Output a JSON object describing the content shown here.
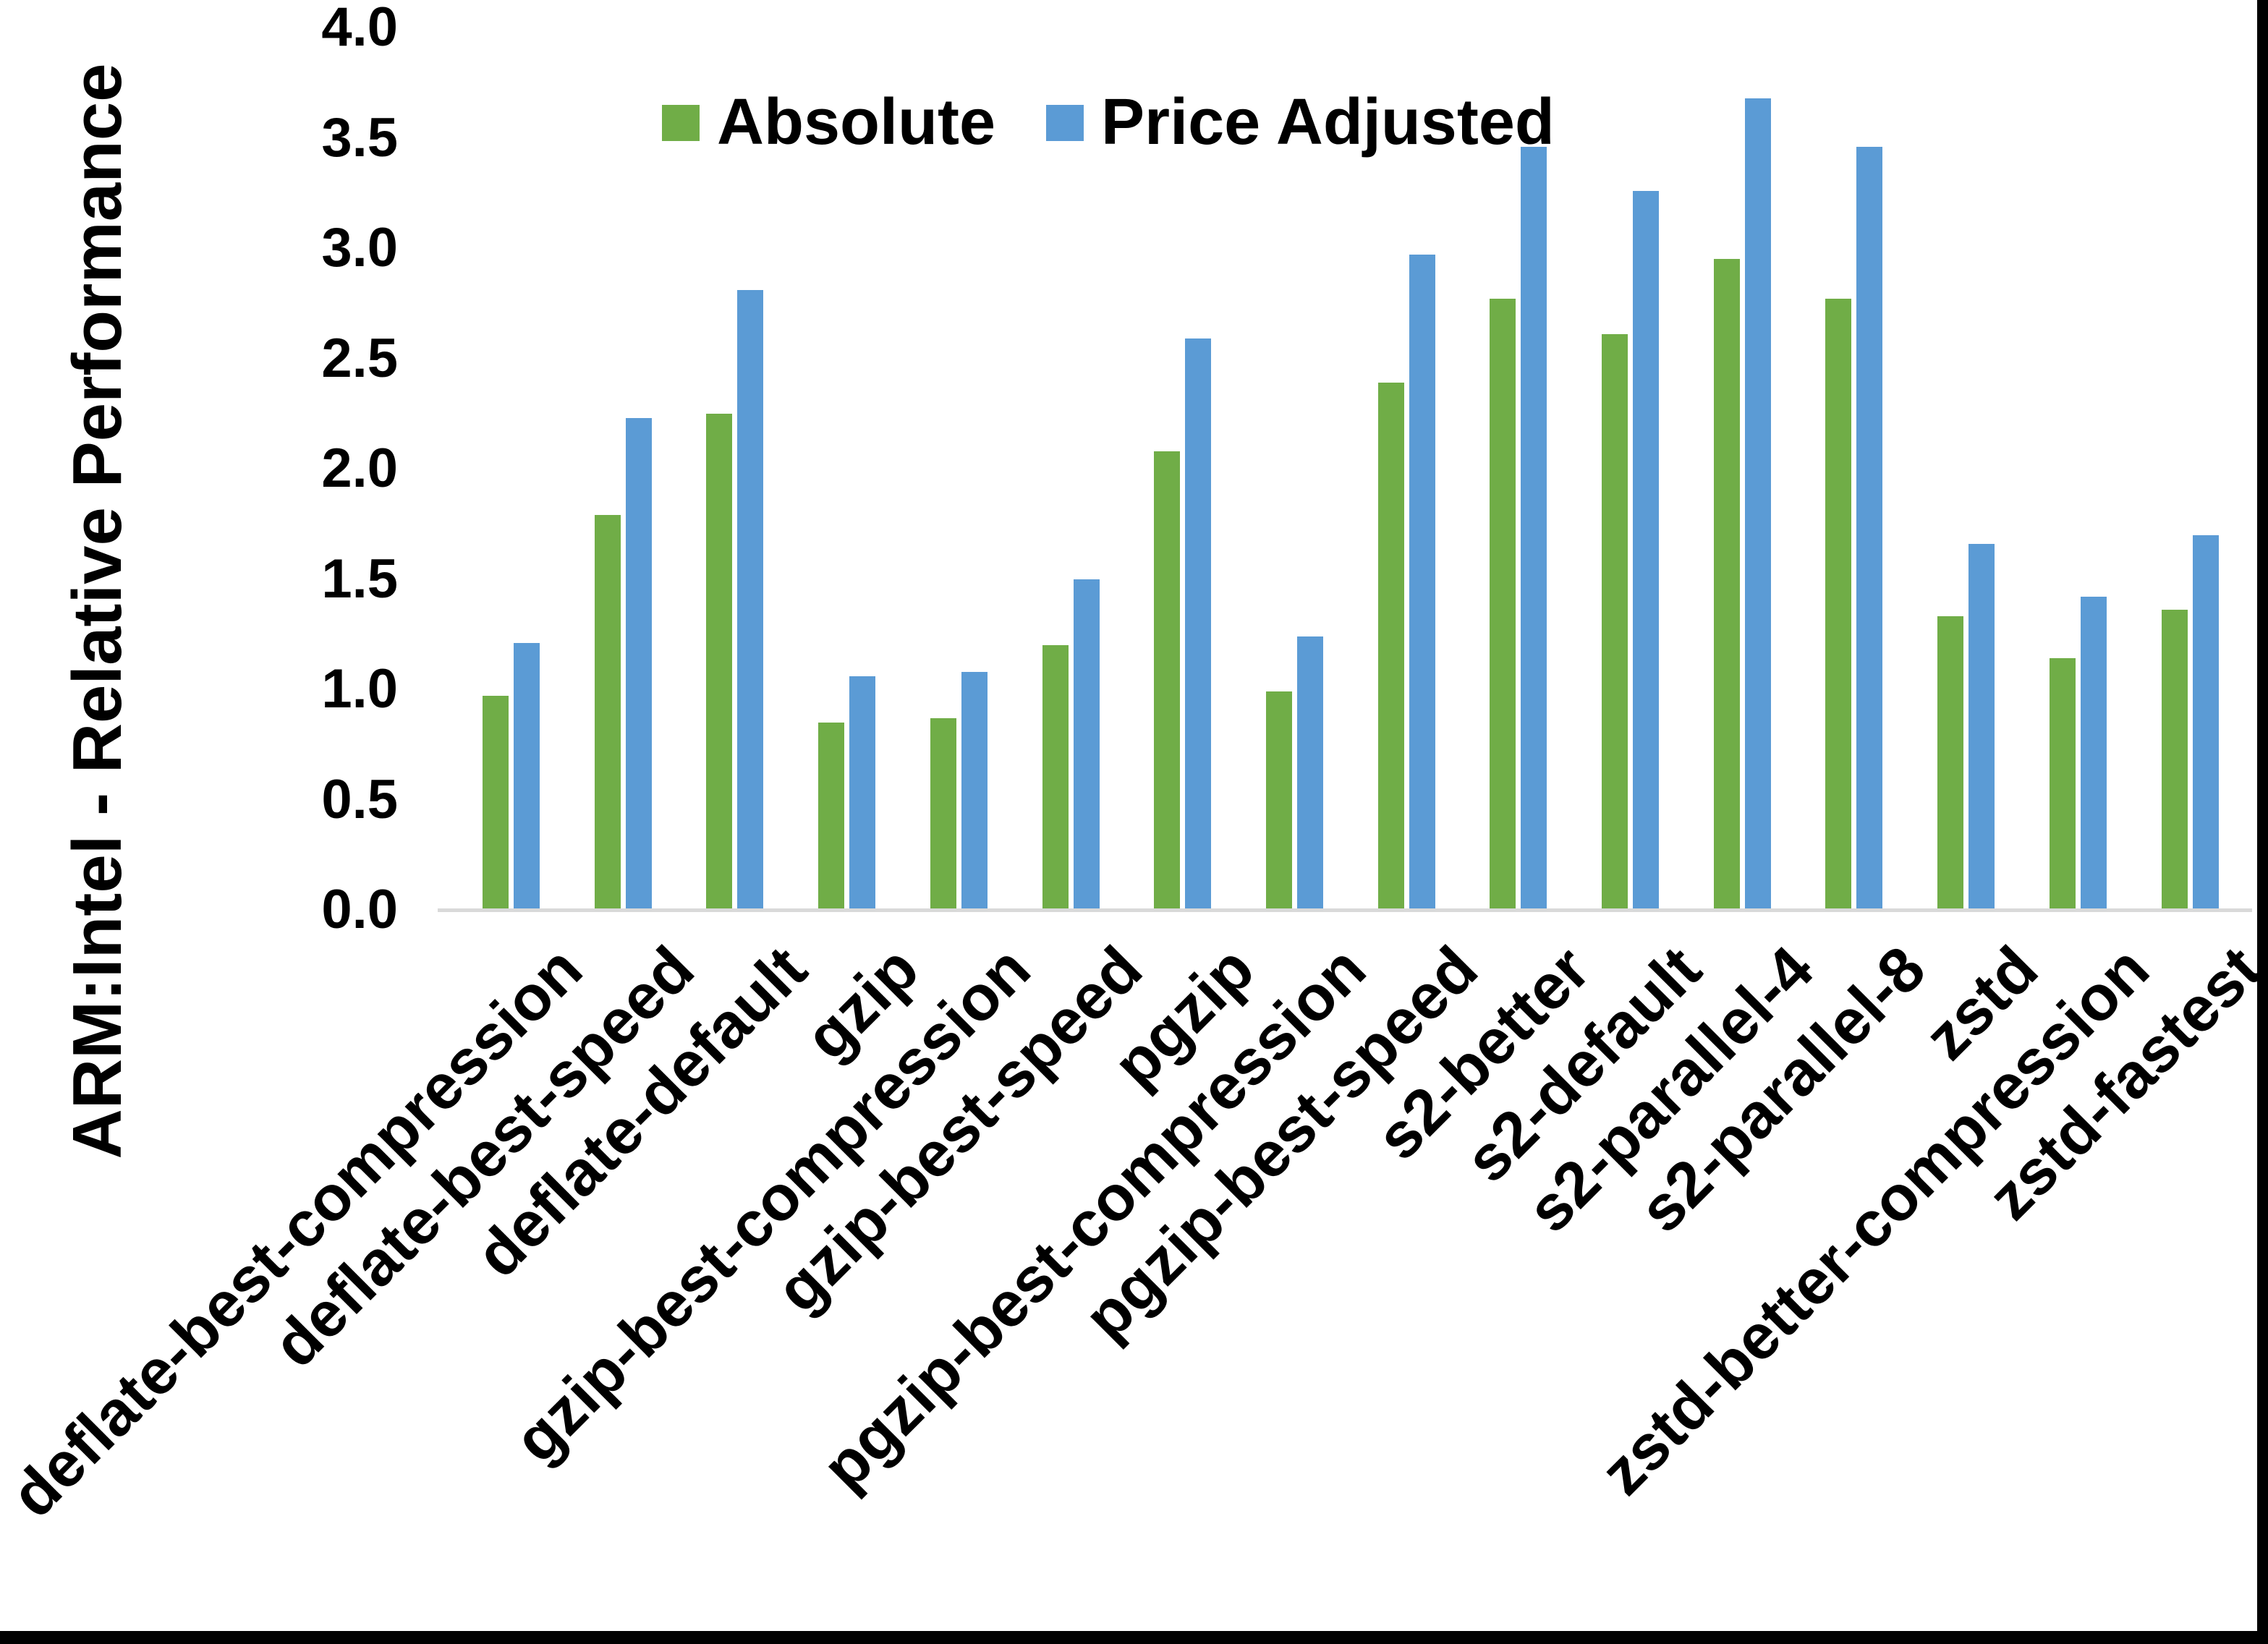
{
  "page": {
    "background": "#FFFFFF",
    "border_right_color": "#000000",
    "border_bottom_color": "#000000"
  },
  "chart_data": {
    "type": "bar",
    "title": "",
    "xlabel": "",
    "ylabel": "ARM:Intel - Relative Performance",
    "ylim": [
      0.0,
      4.0
    ],
    "ytick_step": 0.5,
    "yticks": [
      "4.0",
      "3.5",
      "3.0",
      "2.5",
      "2.0",
      "1.5",
      "1.0",
      "0.5",
      "0.0"
    ],
    "grid": false,
    "legend_position": "top-inside-left-of-center",
    "axis_line_color": "#D9D9D9",
    "categories": [
      "deflate-best-compression",
      "deflate-best-speed",
      "deflate-default",
      "gzip",
      "gzip-best-compression",
      "gzip-best-speed",
      "pgzip",
      "pgzip-best-compression",
      "pgzip-best-speed",
      "s2-better",
      "s2-default",
      "s2-parallel-4",
      "s2-parallel-8",
      "zstd",
      "zstd-better-compression",
      "zstd-fastest"
    ],
    "series": [
      {
        "name": "Absolute",
        "color": "#70AD47",
        "values": [
          0.97,
          1.79,
          2.25,
          0.85,
          0.87,
          1.2,
          2.08,
          0.99,
          2.39,
          2.77,
          2.61,
          2.95,
          2.77,
          1.33,
          1.14,
          1.36
        ]
      },
      {
        "name": "Price Adjusted",
        "color": "#5B9BD5",
        "values": [
          1.21,
          2.23,
          2.81,
          1.06,
          1.08,
          1.5,
          2.59,
          1.24,
          2.97,
          3.46,
          3.26,
          3.68,
          3.46,
          1.66,
          1.42,
          1.7
        ]
      }
    ]
  }
}
